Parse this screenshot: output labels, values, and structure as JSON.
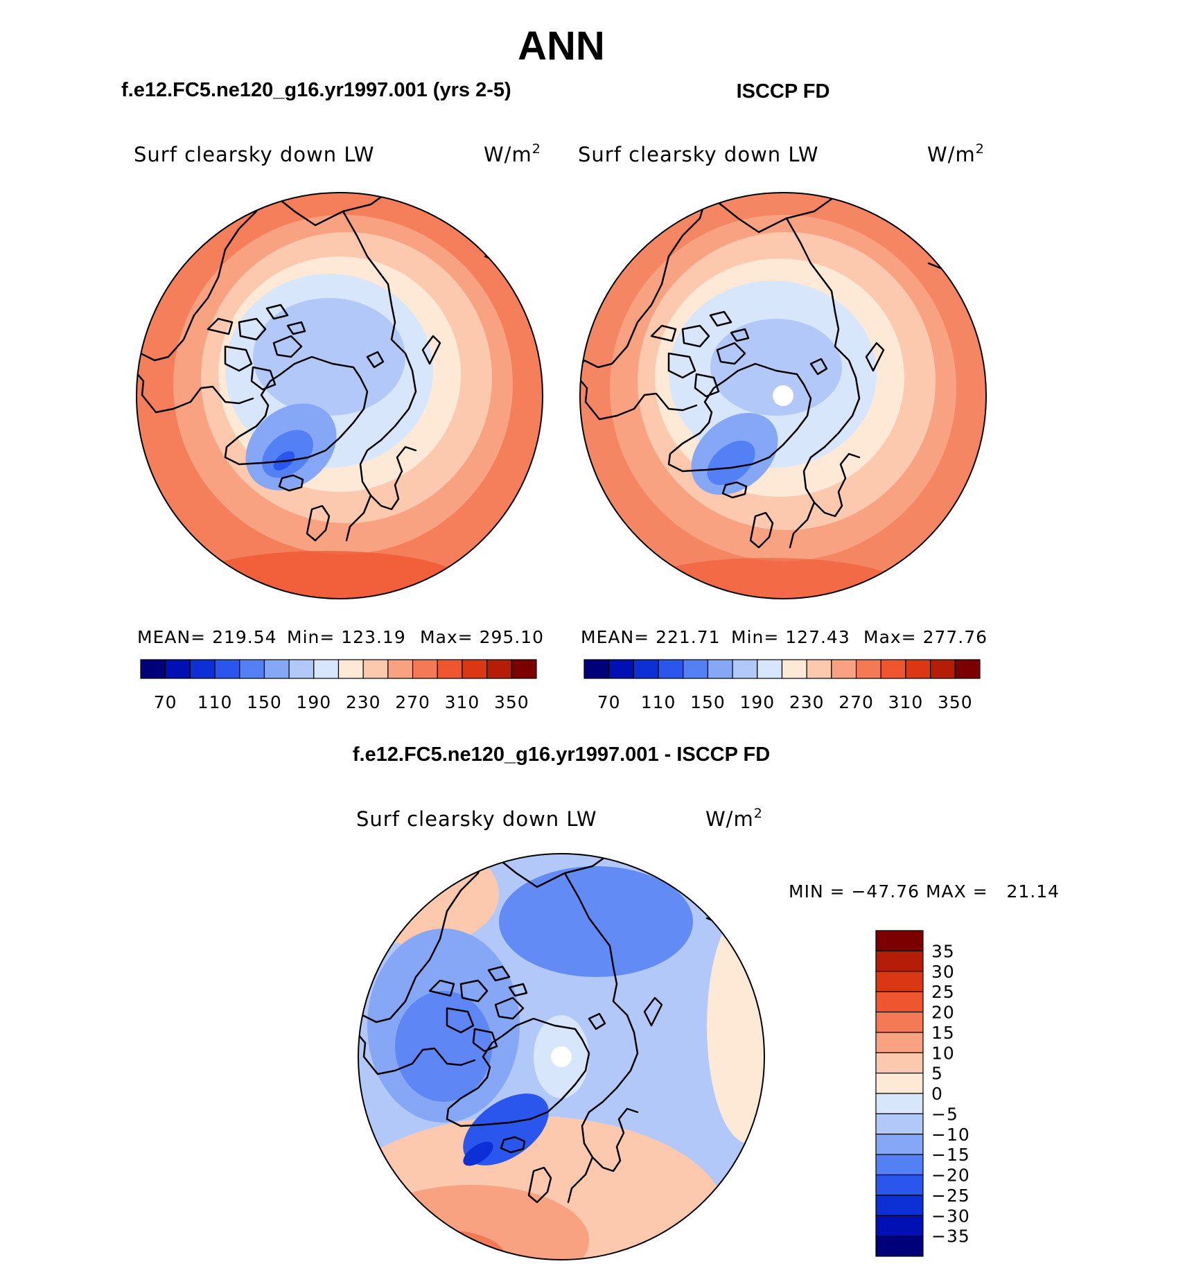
{
  "title": "ANN",
  "palettes": {
    "abs": [
      "#00007a",
      "#0010b4",
      "#0c2fd6",
      "#2a56ee",
      "#5480f5",
      "#86a6f6",
      "#b2c8f8",
      "#d8e6fb",
      "#fde9d6",
      "#fcc9ae",
      "#f8a282",
      "#f47a56",
      "#ef5630",
      "#dc3714",
      "#b61d08",
      "#7c0000"
    ],
    "diff": [
      "#00007a",
      "#0010b4",
      "#0c2fd6",
      "#2a56ee",
      "#5480f5",
      "#86a6f6",
      "#b2c8f8",
      "#d8e6fb",
      "#fde9d6",
      "#fcc9ae",
      "#f8a282",
      "#f47a56",
      "#ef5630",
      "#dc3714",
      "#b61d08",
      "#7c0000"
    ]
  },
  "panels": [
    {
      "case_title": "f.e12.FC5.ne120_g16.yr1997.001 (yrs 2-5)",
      "variable": "Surf clearsky down LW",
      "units_base": "W/m",
      "units_sup": "2",
      "stats": {
        "mean": "MEAN= 219.54",
        "min": "Min= 123.19",
        "max": "Max= 295.10"
      },
      "colorbar_labels": [
        "70",
        "110",
        "150",
        "190",
        "230",
        "270",
        "310",
        "350"
      ],
      "pole_hole": false
    },
    {
      "case_title": "ISCCP FD",
      "variable": "Surf clearsky down LW",
      "units_base": "W/m",
      "units_sup": "2",
      "stats": {
        "mean": "MEAN= 221.71",
        "min": "Min= 127.43",
        "max": "Max= 277.76"
      },
      "colorbar_labels": [
        "70",
        "110",
        "150",
        "190",
        "230",
        "270",
        "310",
        "350"
      ],
      "pole_hole": true
    }
  ],
  "diff_panel": {
    "case_title": "f.e12.FC5.ne120_g16.yr1997.001 - ISCCP FD",
    "variable": "Surf clearsky down LW",
    "units_base": "W/m",
    "units_sup": "2",
    "minmax": "MIN = −47.76 MAX =   21.14",
    "colorbar_labels": [
      "35",
      "30",
      "25",
      "20",
      "15",
      "10",
      "5",
      "0",
      "−5",
      "−10",
      "−15",
      "−20",
      "−25",
      "−30",
      "−35"
    ],
    "pole_hole": true
  }
}
